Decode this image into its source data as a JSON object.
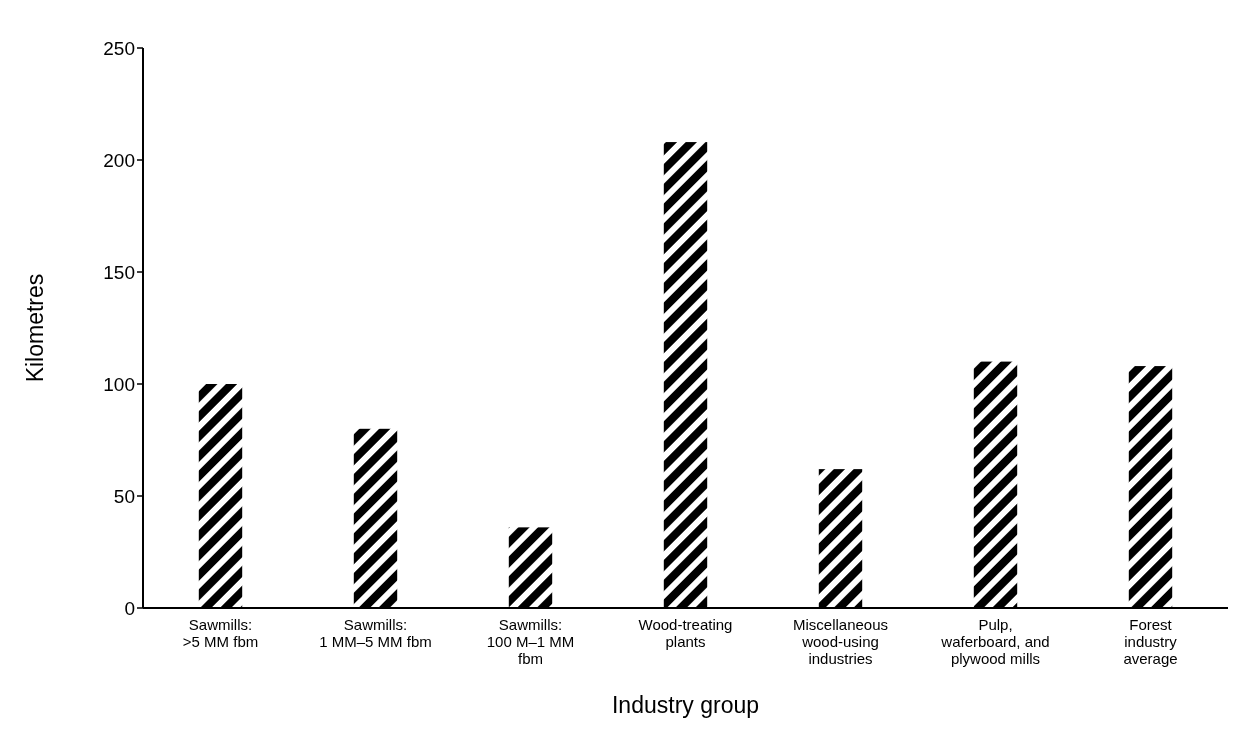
{
  "chart_data": {
    "type": "bar",
    "xlabel": "Industry group",
    "ylabel": "Kilometres",
    "categories": [
      "Sawmills:\n>5 MM fbm",
      "Sawmills:\n1 MM–5 MM fbm",
      "Sawmills:\n100 M–1 MM\nfbm",
      "Wood-treating\nplants",
      "Miscellaneous\nwood-using\nindustries",
      "Pulp,\nwaferboard, and\nplywood mills",
      "Forest\nindustry\naverage"
    ],
    "values": [
      100,
      80,
      36,
      208,
      62,
      110,
      108
    ],
    "color": "#000000",
    "ylim": [
      0,
      250
    ],
    "yticks": [
      0,
      50,
      100,
      150,
      200,
      250
    ],
    "grid": false
  }
}
